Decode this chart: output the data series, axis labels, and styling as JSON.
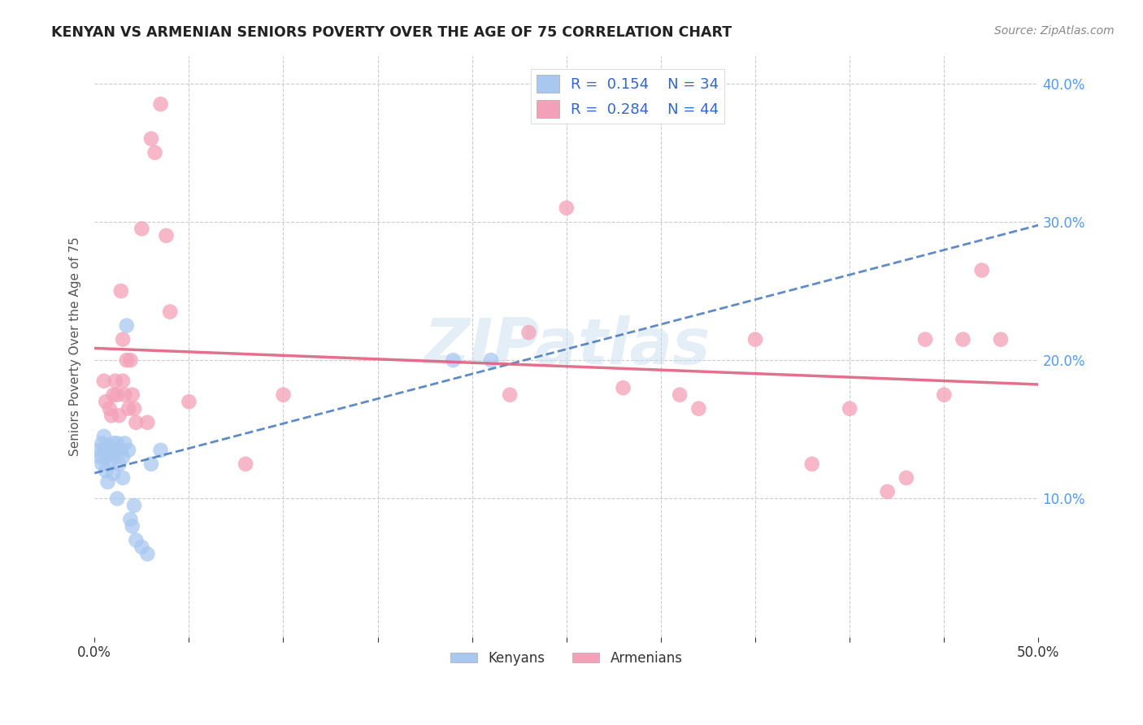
{
  "title": "KENYAN VS ARMENIAN SENIORS POVERTY OVER THE AGE OF 75 CORRELATION CHART",
  "source": "Source: ZipAtlas.com",
  "ylabel": "Seniors Poverty Over the Age of 75",
  "xlabel": "",
  "watermark": "ZIPatlas",
  "xlim": [
    0.0,
    0.5
  ],
  "ylim": [
    0.0,
    0.42
  ],
  "xticks": [
    0.0,
    0.05,
    0.1,
    0.15,
    0.2,
    0.25,
    0.3,
    0.35,
    0.4,
    0.45,
    0.5
  ],
  "yticks": [
    0.0,
    0.1,
    0.2,
    0.3,
    0.4
  ],
  "legend_R_kenyan": "0.154",
  "legend_N_kenyan": "34",
  "legend_R_armenian": "0.284",
  "legend_N_armenian": "44",
  "kenyan_color": "#A8C8F0",
  "armenian_color": "#F4A0B8",
  "kenyan_line_color": "#4477BB",
  "armenian_line_color": "#E06080",
  "background_color": "#FFFFFF",
  "kenyan_x": [
    0.002,
    0.003,
    0.004,
    0.004,
    0.005,
    0.005,
    0.006,
    0.006,
    0.007,
    0.007,
    0.008,
    0.009,
    0.01,
    0.01,
    0.011,
    0.012,
    0.012,
    0.013,
    0.014,
    0.015,
    0.015,
    0.016,
    0.017,
    0.018,
    0.019,
    0.02,
    0.021,
    0.022,
    0.025,
    0.028,
    0.03,
    0.035,
    0.19,
    0.21
  ],
  "kenyan_y": [
    0.135,
    0.13,
    0.14,
    0.125,
    0.145,
    0.135,
    0.13,
    0.12,
    0.138,
    0.112,
    0.132,
    0.128,
    0.14,
    0.118,
    0.135,
    0.14,
    0.1,
    0.125,
    0.135,
    0.13,
    0.115,
    0.14,
    0.225,
    0.135,
    0.085,
    0.08,
    0.095,
    0.07,
    0.065,
    0.06,
    0.125,
    0.135,
    0.2,
    0.2
  ],
  "armenian_x": [
    0.005,
    0.006,
    0.008,
    0.009,
    0.01,
    0.011,
    0.012,
    0.013,
    0.014,
    0.015,
    0.015,
    0.016,
    0.017,
    0.018,
    0.019,
    0.02,
    0.021,
    0.022,
    0.025,
    0.028,
    0.03,
    0.032,
    0.035,
    0.038,
    0.04,
    0.05,
    0.08,
    0.1,
    0.22,
    0.23,
    0.25,
    0.28,
    0.31,
    0.32,
    0.35,
    0.38,
    0.4,
    0.42,
    0.43,
    0.44,
    0.45,
    0.46,
    0.47,
    0.48
  ],
  "armenian_y": [
    0.185,
    0.17,
    0.165,
    0.16,
    0.175,
    0.185,
    0.175,
    0.16,
    0.25,
    0.215,
    0.185,
    0.175,
    0.2,
    0.165,
    0.2,
    0.175,
    0.165,
    0.155,
    0.295,
    0.155,
    0.36,
    0.35,
    0.385,
    0.29,
    0.235,
    0.17,
    0.125,
    0.175,
    0.175,
    0.22,
    0.31,
    0.18,
    0.175,
    0.165,
    0.215,
    0.125,
    0.165,
    0.105,
    0.115,
    0.215,
    0.175,
    0.215,
    0.265,
    0.215
  ]
}
